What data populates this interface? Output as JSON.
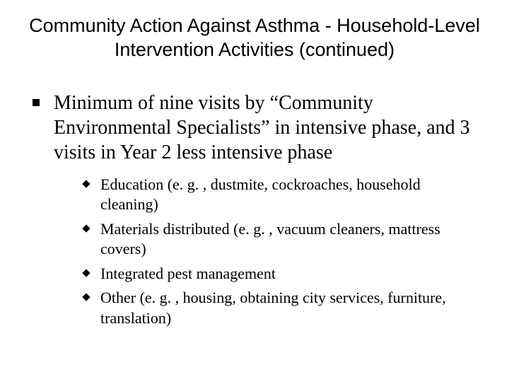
{
  "title": "Community Action Against Asthma - Household-Level Intervention Activities (continued)",
  "bullets": {
    "main": "Minimum of nine visits by “Community Environmental Specialists” in intensive phase, and 3 visits in Year 2 less intensive phase",
    "sub": [
      "Education (e. g. , dustmite, cockroaches, household cleaning)",
      "Materials distributed (e. g. , vacuum cleaners, mattress covers)",
      "Integrated pest management",
      "Other (e. g. , housing, obtaining city services, furniture, translation)"
    ]
  }
}
